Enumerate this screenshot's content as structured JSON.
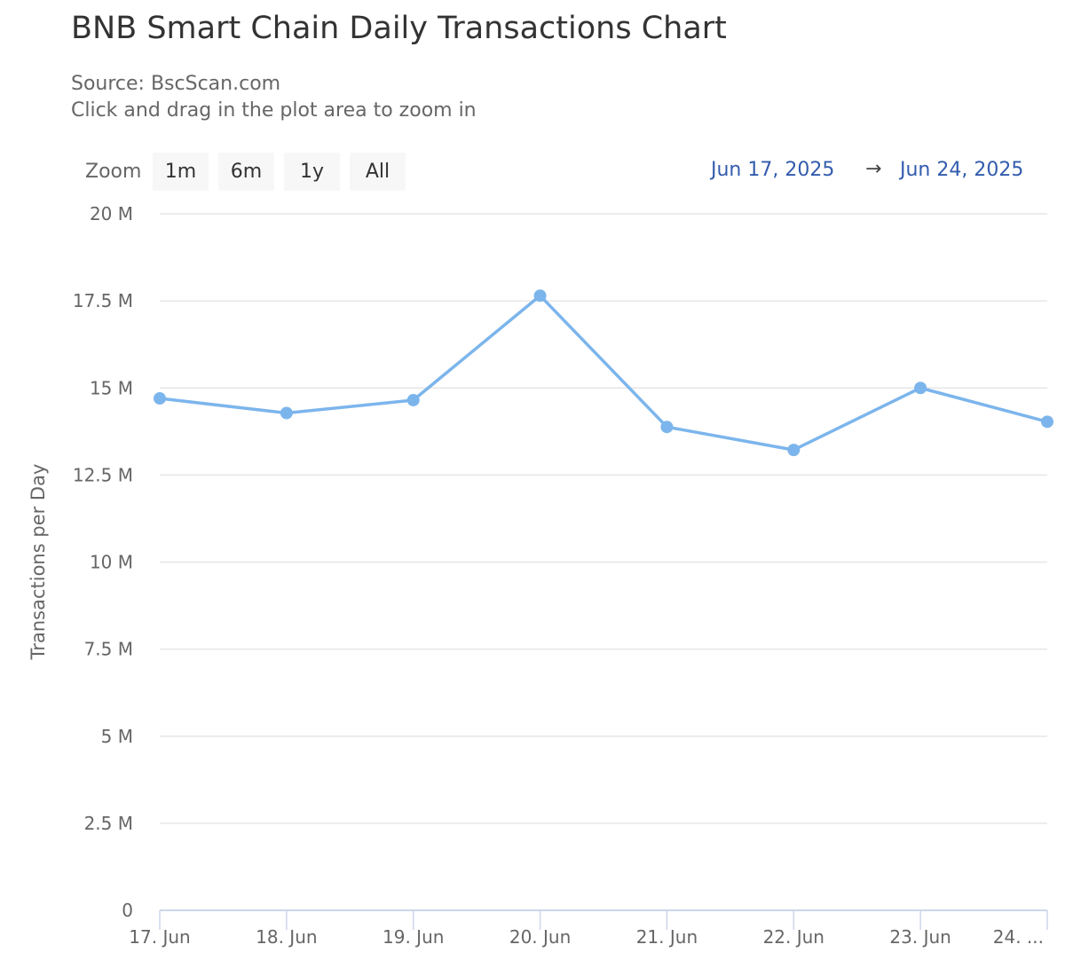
{
  "header": {
    "title": "BNB Smart Chain Daily Transactions Chart",
    "subtitle_source": "Source: BscScan.com",
    "subtitle_hint": "Click and drag in the plot area to zoom in"
  },
  "range_selector": {
    "zoom_label": "Zoom",
    "buttons": [
      "1m",
      "6m",
      "1y",
      "All"
    ],
    "from": "Jun 17, 2025",
    "arrow": "→",
    "to": "Jun 24, 2025"
  },
  "chart_data": {
    "type": "line",
    "title": "BNB Smart Chain Daily Transactions Chart",
    "subtitle": "Source: BscScan.com",
    "xlabel": "",
    "ylabel": "Transactions per Day",
    "categories": [
      "17. Jun",
      "18. Jun",
      "19. Jun",
      "20. Jun",
      "21. Jun",
      "22. Jun",
      "23. Jun",
      "24. ..."
    ],
    "series": [
      {
        "values": [
          14700000,
          14280000,
          14650000,
          17650000,
          13880000,
          13220000,
          15000000,
          14030000
        ]
      }
    ],
    "y_ticks": [
      "0",
      "2.5 M",
      "5 M",
      "7.5 M",
      "10 M",
      "12.5 M",
      "15 M",
      "17.5 M",
      "20 M"
    ],
    "ylim": [
      0,
      20000000
    ],
    "grid": true,
    "legend": "none",
    "series_color": "#7cb5ec"
  }
}
